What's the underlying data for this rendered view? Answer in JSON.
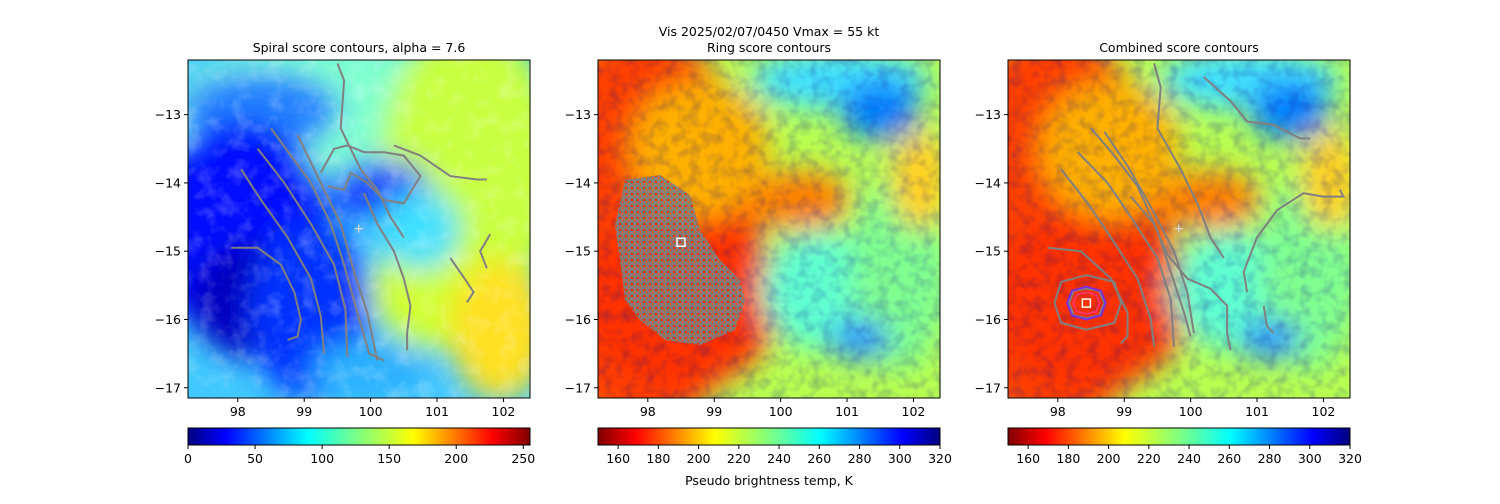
{
  "figure": {
    "suptitle_line1": "Vis  2025/02/07/0450    Vmax = 55 kt"
  },
  "chart_data": [
    {
      "type": "heatmap",
      "title": "Spiral score contours, alpha =  7.6",
      "xlim": [
        97.25,
        102.4
      ],
      "ylim": [
        -17.15,
        -12.2
      ],
      "xticks": [
        98,
        99,
        100,
        101,
        102
      ],
      "yticks": [
        -13,
        -14,
        -15,
        -16,
        -17
      ],
      "colormap": "jet_r",
      "colorbar": {
        "ticks": [
          0,
          50,
          100,
          150,
          200,
          250
        ],
        "range": [
          0,
          255
        ],
        "label": ""
      },
      "markers": [
        {
          "kind": "plus",
          "x": 99.82,
          "y": -14.67,
          "color": "#dddddd"
        }
      ],
      "contour_color": "#808080",
      "contours": [
        [
          [
            97.9,
            -14.95
          ],
          [
            98.3,
            -14.95
          ],
          [
            98.65,
            -15.2
          ],
          [
            98.85,
            -15.6
          ],
          [
            98.95,
            -16.0
          ],
          [
            98.9,
            -16.25
          ],
          [
            98.75,
            -16.3
          ]
        ],
        [
          [
            98.05,
            -13.8
          ],
          [
            98.35,
            -14.25
          ],
          [
            98.75,
            -14.8
          ],
          [
            99.1,
            -15.4
          ],
          [
            99.25,
            -15.95
          ],
          [
            99.3,
            -16.5
          ]
        ],
        [
          [
            98.3,
            -13.5
          ],
          [
            98.7,
            -14.0
          ],
          [
            99.1,
            -14.6
          ],
          [
            99.45,
            -15.2
          ],
          [
            99.62,
            -15.85
          ],
          [
            99.65,
            -16.55
          ]
        ],
        [
          [
            98.9,
            -13.3
          ],
          [
            99.2,
            -13.9
          ],
          [
            99.55,
            -14.6
          ],
          [
            99.75,
            -15.3
          ],
          [
            99.95,
            -15.9
          ],
          [
            100.1,
            -16.6
          ]
        ],
        [
          [
            98.5,
            -13.2
          ],
          [
            98.8,
            -13.6
          ],
          [
            99.1,
            -14.0
          ],
          [
            99.4,
            -14.6
          ],
          [
            99.6,
            -15.2
          ],
          [
            99.8,
            -15.9
          ],
          [
            99.98,
            -16.5
          ],
          [
            100.2,
            -16.6
          ]
        ],
        [
          [
            99.5,
            -12.25
          ],
          [
            99.6,
            -12.5
          ],
          [
            99.55,
            -13.2
          ],
          [
            99.85,
            -13.8
          ],
          [
            100.1,
            -14.1
          ],
          [
            100.3,
            -14.5
          ],
          [
            100.5,
            -14.8
          ]
        ],
        [
          [
            99.25,
            -13.85
          ],
          [
            99.45,
            -13.5
          ],
          [
            99.65,
            -13.45
          ],
          [
            99.9,
            -13.55
          ],
          [
            100.2,
            -13.55
          ],
          [
            100.5,
            -13.6
          ],
          [
            100.75,
            -13.9
          ],
          [
            100.5,
            -14.3
          ],
          [
            100.2,
            -14.25
          ],
          [
            99.95,
            -14.0
          ],
          [
            99.7,
            -13.85
          ],
          [
            99.6,
            -14.1
          ],
          [
            99.35,
            -14.05
          ]
        ],
        [
          [
            100.35,
            -13.45
          ],
          [
            100.75,
            -13.6
          ],
          [
            101.2,
            -13.9
          ],
          [
            101.6,
            -13.95
          ],
          [
            101.75,
            -13.95
          ]
        ],
        [
          [
            99.9,
            -14.15
          ],
          [
            100.1,
            -14.6
          ],
          [
            100.35,
            -15.0
          ],
          [
            100.5,
            -15.4
          ],
          [
            100.6,
            -15.8
          ],
          [
            100.55,
            -16.2
          ],
          [
            100.55,
            -16.45
          ]
        ],
        [
          [
            101.2,
            -15.1
          ],
          [
            101.45,
            -15.45
          ],
          [
            101.55,
            -15.6
          ],
          [
            101.45,
            -15.75
          ]
        ],
        [
          [
            101.8,
            -14.75
          ],
          [
            101.65,
            -15.0
          ],
          [
            101.75,
            -15.25
          ]
        ]
      ]
    },
    {
      "type": "heatmap",
      "title": "Ring score contours",
      "xlim": [
        97.25,
        102.4
      ],
      "ylim": [
        -17.15,
        -12.2
      ],
      "xticks": [
        98,
        99,
        100,
        101,
        102
      ],
      "yticks": [
        -13,
        -14,
        -15,
        -16,
        -17
      ],
      "colormap": "jet",
      "colorbar": {
        "ticks": [
          160,
          180,
          200,
          220,
          240,
          260,
          280,
          300,
          320
        ],
        "range": [
          150,
          320
        ],
        "label": "Pseudo brightness temp, K"
      },
      "markers": [
        {
          "kind": "square",
          "x": 98.5,
          "y": -14.87,
          "color": "#ffffff"
        }
      ],
      "contour_color": "#808080",
      "contours": []
    },
    {
      "type": "heatmap",
      "title": "Combined score contours",
      "xlim": [
        97.25,
        102.4
      ],
      "ylim": [
        -17.15,
        -12.2
      ],
      "xticks": [
        98,
        99,
        100,
        101,
        102
      ],
      "yticks": [
        -13,
        -14,
        -15,
        -16,
        -17
      ],
      "colormap": "jet",
      "colorbar": {
        "ticks": [
          160,
          180,
          200,
          220,
          240,
          260,
          280,
          300,
          320
        ],
        "range": [
          150,
          320
        ],
        "label": ""
      },
      "markers": [
        {
          "kind": "plus",
          "x": 99.82,
          "y": -14.67,
          "color": "#dddddd"
        },
        {
          "kind": "square",
          "x": 98.43,
          "y": -15.76,
          "color": "#ffffff"
        }
      ],
      "contour_color": "#808080",
      "contours": [
        [
          [
            97.85,
            -14.95
          ],
          [
            98.35,
            -15.0
          ],
          [
            98.8,
            -15.4
          ],
          [
            99.05,
            -15.9
          ],
          [
            99.05,
            -16.25
          ],
          [
            98.95,
            -16.35
          ]
        ],
        [
          [
            98.05,
            -13.8
          ],
          [
            98.45,
            -14.3
          ],
          [
            98.8,
            -14.8
          ],
          [
            99.2,
            -15.4
          ],
          [
            99.4,
            -16.0
          ],
          [
            99.45,
            -16.4
          ]
        ],
        [
          [
            98.3,
            -13.55
          ],
          [
            98.75,
            -14.0
          ],
          [
            99.1,
            -14.5
          ],
          [
            99.5,
            -15.1
          ],
          [
            99.7,
            -15.7
          ],
          [
            99.75,
            -16.4
          ]
        ],
        [
          [
            98.7,
            -13.25
          ],
          [
            99.05,
            -13.75
          ],
          [
            99.4,
            -14.35
          ],
          [
            99.75,
            -15.0
          ],
          [
            99.95,
            -15.6
          ],
          [
            100.05,
            -16.2
          ]
        ],
        [
          [
            98.5,
            -13.2
          ],
          [
            98.85,
            -13.6
          ],
          [
            99.2,
            -14.05
          ],
          [
            99.5,
            -14.7
          ],
          [
            99.7,
            -15.3
          ],
          [
            99.9,
            -15.9
          ],
          [
            100.0,
            -16.25
          ]
        ],
        [
          [
            99.45,
            -12.25
          ],
          [
            99.55,
            -12.6
          ],
          [
            99.5,
            -13.2
          ],
          [
            99.85,
            -13.8
          ],
          [
            100.1,
            -14.3
          ],
          [
            100.3,
            -14.8
          ],
          [
            100.5,
            -15.1
          ]
        ],
        [
          [
            99.1,
            -14.2
          ],
          [
            99.45,
            -14.6
          ],
          [
            99.65,
            -15.05
          ],
          [
            99.95,
            -15.4
          ],
          [
            100.3,
            -15.55
          ],
          [
            100.55,
            -15.8
          ],
          [
            100.55,
            -16.2
          ],
          [
            100.6,
            -16.45
          ]
        ],
        [
          [
            100.2,
            -12.45
          ],
          [
            100.6,
            -12.8
          ],
          [
            100.85,
            -13.1
          ],
          [
            101.25,
            -13.15
          ],
          [
            101.65,
            -13.35
          ],
          [
            101.8,
            -13.35
          ]
        ],
        [
          [
            100.85,
            -15.6
          ],
          [
            100.8,
            -15.3
          ],
          [
            101.0,
            -14.8
          ],
          [
            101.3,
            -14.4
          ],
          [
            101.7,
            -14.15
          ],
          [
            102.0,
            -14.2
          ],
          [
            102.3,
            -14.2
          ],
          [
            102.25,
            -14.1
          ]
        ],
        [
          [
            101.1,
            -15.8
          ],
          [
            101.15,
            -16.1
          ],
          [
            101.25,
            -16.2
          ]
        ],
        [
          [
            98.43,
            -15.55
          ],
          [
            98.62,
            -15.58
          ],
          [
            98.7,
            -15.76
          ],
          [
            98.62,
            -15.94
          ],
          [
            98.43,
            -15.98
          ],
          [
            98.24,
            -15.94
          ],
          [
            98.17,
            -15.76
          ],
          [
            98.24,
            -15.58
          ],
          [
            98.43,
            -15.55
          ]
        ],
        [
          [
            98.43,
            -15.35
          ],
          [
            98.85,
            -15.45
          ],
          [
            98.95,
            -15.76
          ],
          [
            98.85,
            -16.05
          ],
          [
            98.43,
            -16.15
          ],
          [
            98.05,
            -16.05
          ],
          [
            97.95,
            -15.76
          ],
          [
            98.05,
            -15.45
          ],
          [
            98.43,
            -15.35
          ]
        ]
      ],
      "highlight_contours": [
        {
          "color": "#ff3366",
          "points": [
            [
              98.43,
              -15.6
            ],
            [
              98.58,
              -15.64
            ],
            [
              98.63,
              -15.76
            ],
            [
              98.58,
              -15.88
            ],
            [
              98.43,
              -15.92
            ],
            [
              98.28,
              -15.88
            ],
            [
              98.23,
              -15.76
            ],
            [
              98.28,
              -15.64
            ],
            [
              98.43,
              -15.6
            ]
          ]
        },
        {
          "color": "#7a2ee0",
          "points": [
            [
              98.43,
              -15.52
            ],
            [
              98.65,
              -15.58
            ],
            [
              98.72,
              -15.76
            ],
            [
              98.65,
              -15.94
            ],
            [
              98.43,
              -16.0
            ],
            [
              98.21,
              -15.94
            ],
            [
              98.14,
              -15.76
            ],
            [
              98.21,
              -15.58
            ],
            [
              98.43,
              -15.52
            ]
          ]
        }
      ]
    }
  ]
}
